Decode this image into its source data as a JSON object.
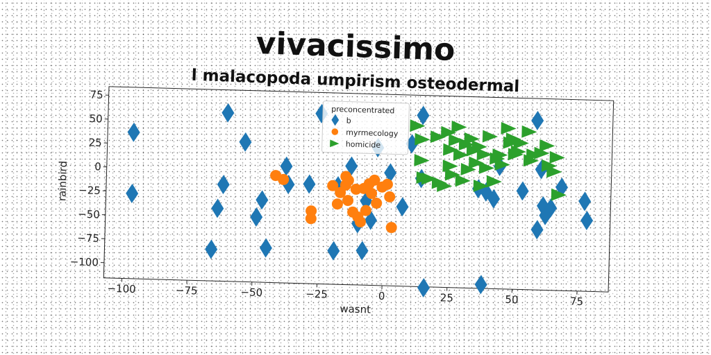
{
  "chart_data": {
    "type": "scatter",
    "title": "vivacissimo",
    "subtitle": "l malacopoda umpirism osteodermal",
    "xlabel": "wasnt",
    "ylabel": "rainbird",
    "xlim": [
      -107,
      87
    ],
    "ylim": [
      -116,
      84
    ],
    "xticks": [
      -100,
      -75,
      -50,
      -25,
      0,
      25,
      50,
      75
    ],
    "yticks": [
      75,
      50,
      25,
      0,
      -25,
      -50,
      -75,
      -100
    ],
    "xtick_labels": [
      "−100",
      "−75",
      "−50",
      "−25",
      "0",
      "25",
      "50",
      "75"
    ],
    "ytick_labels": [
      "75",
      "50",
      "25",
      "0",
      "−25",
      "−50",
      "−75",
      "−100"
    ],
    "grid": false,
    "legend": {
      "title": "preconcentrated",
      "position": "top-center"
    },
    "series": [
      {
        "name": "b",
        "marker": "diamond",
        "color": "#1f77b4",
        "points": [
          [
            -97,
            37
          ],
          [
            -97,
            -27
          ],
          [
            -61,
            60
          ],
          [
            -62,
            -15
          ],
          [
            -64,
            -40
          ],
          [
            -66,
            -83
          ],
          [
            -54,
            30
          ],
          [
            -47,
            -30
          ],
          [
            -49,
            -48
          ],
          [
            -45,
            -80
          ],
          [
            -38,
            6
          ],
          [
            -37,
            -13
          ],
          [
            -29,
            -12
          ],
          [
            -25,
            62
          ],
          [
            -13,
            8
          ],
          [
            -18,
            -13
          ],
          [
            -19,
            -81
          ],
          [
            -10,
            -52
          ],
          [
            -8,
            -80
          ],
          [
            -7,
            -28
          ],
          [
            -5,
            -48
          ],
          [
            -3,
            28
          ],
          [
            2,
            2
          ],
          [
            7,
            -33
          ],
          [
            10,
            33
          ],
          [
            14,
            63
          ],
          [
            16,
            -117
          ],
          [
            14,
            -3
          ],
          [
            36,
            -12
          ],
          [
            38,
            -112
          ],
          [
            39,
            -15
          ],
          [
            42,
            -22
          ],
          [
            44,
            12
          ],
          [
            53,
            -13
          ],
          [
            58,
            61
          ],
          [
            59,
            -53
          ],
          [
            60,
            10
          ],
          [
            61,
            -28
          ],
          [
            62,
            -38
          ],
          [
            64,
            -30
          ],
          [
            68,
            -8
          ],
          [
            77,
            -22
          ],
          [
            78,
            -42
          ]
        ]
      },
      {
        "name": "myrmecology",
        "marker": "circle",
        "color": "#ff7f0e",
        "points": [
          [
            -42,
            -4
          ],
          [
            -39,
            -8
          ],
          [
            -28,
            -40
          ],
          [
            -28,
            -48
          ],
          [
            -20,
            -13
          ],
          [
            -18,
            -32
          ],
          [
            -17,
            -20
          ],
          [
            -15,
            -12
          ],
          [
            -14,
            -7
          ],
          [
            -14,
            -28
          ],
          [
            -12,
            -40
          ],
          [
            -11,
            -16
          ],
          [
            -10,
            -45
          ],
          [
            -9,
            -50
          ],
          [
            -8,
            -15
          ],
          [
            -6,
            -10
          ],
          [
            -5,
            -20
          ],
          [
            -4,
            -6
          ],
          [
            -3,
            -30
          ],
          [
            -1,
            -13
          ],
          [
            1,
            -10
          ],
          [
            2,
            -23
          ],
          [
            3,
            -55
          ],
          [
            -15,
            -3
          ],
          [
            -7,
            -38
          ]
        ]
      },
      {
        "name": "homicide",
        "marker": "triangle-right",
        "color": "#2ca02c",
        "points": [
          [
            12,
            52
          ],
          [
            14,
            38
          ],
          [
            14,
            16
          ],
          [
            15,
            -2
          ],
          [
            17,
            -3
          ],
          [
            20,
            41
          ],
          [
            21,
            -7
          ],
          [
            23,
            -10
          ],
          [
            24,
            46
          ],
          [
            25,
            28
          ],
          [
            25,
            11
          ],
          [
            26,
            2
          ],
          [
            27,
            38
          ],
          [
            28,
            52
          ],
          [
            29,
            23
          ],
          [
            30,
            -4
          ],
          [
            31,
            34
          ],
          [
            32,
            8
          ],
          [
            33,
            40
          ],
          [
            34,
            28
          ],
          [
            35,
            15
          ],
          [
            36,
            32
          ],
          [
            37,
            -9
          ],
          [
            38,
            24
          ],
          [
            39,
            10
          ],
          [
            40,
            43
          ],
          [
            42,
            -4
          ],
          [
            43,
            20
          ],
          [
            44,
            24
          ],
          [
            45,
            14
          ],
          [
            47,
            52
          ],
          [
            48,
            37
          ],
          [
            49,
            41
          ],
          [
            50,
            25
          ],
          [
            51,
            28
          ],
          [
            52,
            37
          ],
          [
            55,
            49
          ],
          [
            56,
            19
          ],
          [
            57,
            25
          ],
          [
            60,
            27
          ],
          [
            62,
            35
          ],
          [
            63,
            14
          ],
          [
            65,
            8
          ],
          [
            66,
            23
          ],
          [
            67,
            -16
          ]
        ]
      }
    ]
  }
}
